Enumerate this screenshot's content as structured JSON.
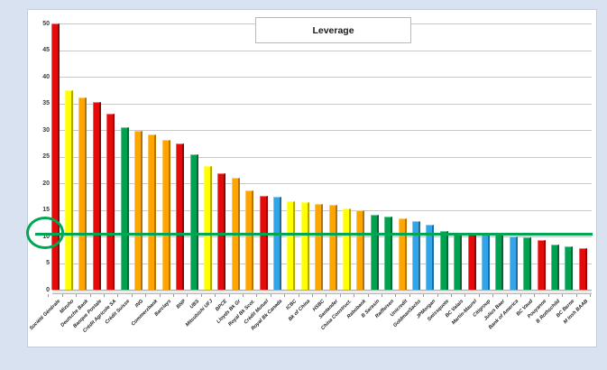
{
  "page": {
    "background_color": "#d9e2f0",
    "panel_background": "#ffffff"
  },
  "chart_data": {
    "type": "bar",
    "title": "Leverage",
    "xlabel": "",
    "ylabel": "",
    "ylim": [
      0,
      50
    ],
    "yticks": [
      0,
      5,
      10,
      15,
      20,
      25,
      30,
      35,
      40,
      45,
      50
    ],
    "grid": "horizontal",
    "legend": "none",
    "reference_line": {
      "value": 10.5,
      "color": "#00a651",
      "annotation": "green ellipse circling the y-axis value 10"
    },
    "bars": [
      {
        "label": "Société Générale",
        "value": 50,
        "color": "red"
      },
      {
        "label": "Mizuho",
        "value": 37.4,
        "color": "yellow"
      },
      {
        "label": "Deutsche Bank",
        "value": 36.1,
        "color": "orange"
      },
      {
        "label": "Banque Postale",
        "value": 35.3,
        "color": "red"
      },
      {
        "label": "Crédit Agricole SA",
        "value": 33,
        "color": "red"
      },
      {
        "label": "Crédit Suisse",
        "value": 30.5,
        "color": "green"
      },
      {
        "label": "ING",
        "value": 29.9,
        "color": "orange"
      },
      {
        "label": "Commerzbank",
        "value": 29.1,
        "color": "orange"
      },
      {
        "label": "Barclays",
        "value": 28.2,
        "color": "orange"
      },
      {
        "label": "BNP",
        "value": 27.5,
        "color": "red"
      },
      {
        "label": "UBS",
        "value": 25.4,
        "color": "green"
      },
      {
        "label": "Mitsubishi UFJ",
        "value": 23.3,
        "color": "yellow"
      },
      {
        "label": "BPCE",
        "value": 21.9,
        "color": "red"
      },
      {
        "label": "Lloyds Bk Gr",
        "value": 21,
        "color": "orange"
      },
      {
        "label": "Royal Bk Scot.",
        "value": 18.6,
        "color": "orange"
      },
      {
        "label": "Crédit Mutuel",
        "value": 17.6,
        "color": "red"
      },
      {
        "label": "Royal Bk Canada",
        "value": 17.4,
        "color": "blue"
      },
      {
        "label": "ICBC",
        "value": 16.6,
        "color": "yellow"
      },
      {
        "label": "Bk of China",
        "value": 16.5,
        "color": "yellow"
      },
      {
        "label": "HSBC",
        "value": 16.1,
        "color": "orange"
      },
      {
        "label": "Santander",
        "value": 16,
        "color": "orange"
      },
      {
        "label": "China Construct.",
        "value": 15.2,
        "color": "yellow"
      },
      {
        "label": "Rabobank",
        "value": 15,
        "color": "orange"
      },
      {
        "label": "B Sarasin",
        "value": 14.1,
        "color": "green"
      },
      {
        "label": "Raiffeisen",
        "value": 13.7,
        "color": "green"
      },
      {
        "label": "Unicredit",
        "value": 13.4,
        "color": "orange"
      },
      {
        "label": "GoldmanSachs",
        "value": 12.8,
        "color": "blue"
      },
      {
        "label": "JPMorgan",
        "value": 12.2,
        "color": "blue"
      },
      {
        "label": "Swissquote",
        "value": 11,
        "color": "green"
      },
      {
        "label": "BC Valais",
        "value": 10.6,
        "color": "green"
      },
      {
        "label": "Martin-Maurel",
        "value": 10.5,
        "color": "red"
      },
      {
        "label": "Citigroup",
        "value": 10.4,
        "color": "blue"
      },
      {
        "label": "Julius Baer",
        "value": 10.3,
        "color": "green"
      },
      {
        "label": "Bank of America",
        "value": 10,
        "color": "blue"
      },
      {
        "label": "BC Vaud",
        "value": 9.8,
        "color": "green"
      },
      {
        "label": "Pouyanne",
        "value": 9.4,
        "color": "red"
      },
      {
        "label": "B Rothschild",
        "value": 8.4,
        "color": "green"
      },
      {
        "label": "BC Berne",
        "value": 8.2,
        "color": "green"
      },
      {
        "label": "M Insh BAAB",
        "value": 7.8,
        "color": "red"
      }
    ],
    "palette": {
      "red": {
        "front": "#e60b0b",
        "side": "#990000"
      },
      "yellow": {
        "front": "#ffff00",
        "side": "#b3a300"
      },
      "orange": {
        "front": "#ffa500",
        "side": "#b37400"
      },
      "green": {
        "front": "#00a14f",
        "side": "#006633"
      },
      "blue": {
        "front": "#31a5e8",
        "side": "#1d6e9e"
      }
    },
    "gridline_color": "#c8c8c8",
    "axis_text_color": "#3b3b3b"
  }
}
